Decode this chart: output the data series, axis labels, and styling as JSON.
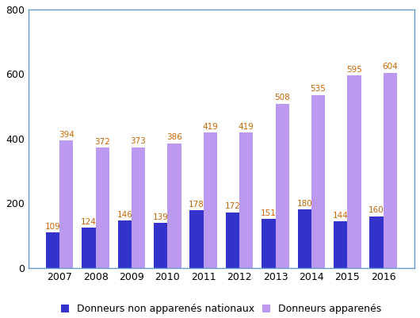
{
  "years": [
    2007,
    2008,
    2009,
    2010,
    2011,
    2012,
    2013,
    2014,
    2015,
    2016
  ],
  "non_apparentes": [
    109,
    124,
    146,
    139,
    178,
    172,
    151,
    180,
    144,
    160
  ],
  "apparentes": [
    394,
    372,
    373,
    386,
    419,
    419,
    508,
    535,
    595,
    604
  ],
  "color_non_apparentes": "#3333cc",
  "color_apparentes": "#bb99ee",
  "ylim": [
    0,
    800
  ],
  "yticks": [
    0,
    200,
    400,
    600,
    800
  ],
  "legend_label_non": "Donneurs non apparenés nationaux",
  "legend_label_app": "Donneurs apparenés",
  "bar_width": 0.38,
  "bar_gap": 0.0,
  "annotation_fontsize": 7.5,
  "annotation_color_non": "#cc6600",
  "annotation_color_app": "#cc6600",
  "axis_label_fontsize": 9,
  "legend_fontsize": 9,
  "spine_color": "#6699cc",
  "background_color": "#ffffff"
}
